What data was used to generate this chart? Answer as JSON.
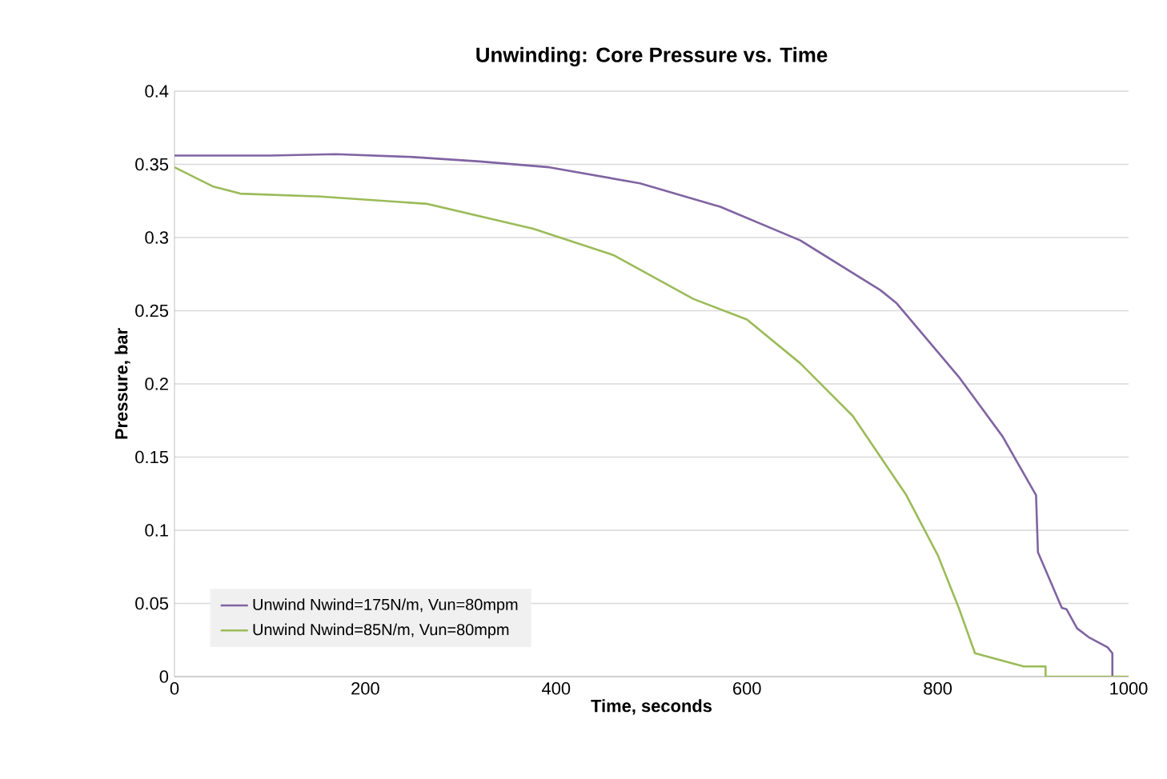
{
  "chart_data": {
    "type": "line",
    "title": "Unwinding: Core Pressure vs. Time",
    "xlabel": "Time, seconds",
    "ylabel": "Pressure, bar",
    "xlim": [
      0,
      1000
    ],
    "xticks": [
      0,
      200,
      400,
      600,
      800,
      1000
    ],
    "ylim": [
      0,
      0.4
    ],
    "yticks": [
      0,
      0.05,
      0.1,
      0.15,
      0.2,
      0.25,
      0.3,
      0.35,
      0.4
    ],
    "grid": "y",
    "legend": "bottom left",
    "line_style": "solid",
    "marker": "none",
    "series": [
      {
        "name": "Unwind Nwind=175N/m, Vun=80mpm",
        "color": "#8064a2",
        "x": [
          0,
          100,
          169,
          250,
          320,
          393,
          488,
          572,
          656,
          740,
          757,
          823,
          868,
          903,
          905,
          930,
          935,
          946,
          958,
          978,
          983,
          983
        ],
        "values": [
          0.356,
          0.356,
          0.357,
          0.355,
          0.352,
          0.348,
          0.337,
          0.321,
          0.298,
          0.264,
          0.255,
          0.204,
          0.164,
          0.124,
          0.085,
          0.047,
          0.046,
          0.033,
          0.027,
          0.02,
          0.016,
          0
        ]
      },
      {
        "name": "Unwind Nwind=85N/m, Vun=80mpm",
        "color": "#9bbb59",
        "x": [
          0,
          40,
          69,
          153,
          265,
          376,
          460,
          544,
          600,
          656,
          711,
          767,
          800,
          822,
          839,
          890,
          913,
          913,
          1000
        ],
        "values": [
          0.348,
          0.335,
          0.33,
          0.328,
          0.323,
          0.306,
          0.288,
          0.258,
          0.244,
          0.214,
          0.178,
          0.124,
          0.083,
          0.047,
          0.016,
          0.007,
          0.007,
          0,
          0
        ]
      }
    ]
  }
}
